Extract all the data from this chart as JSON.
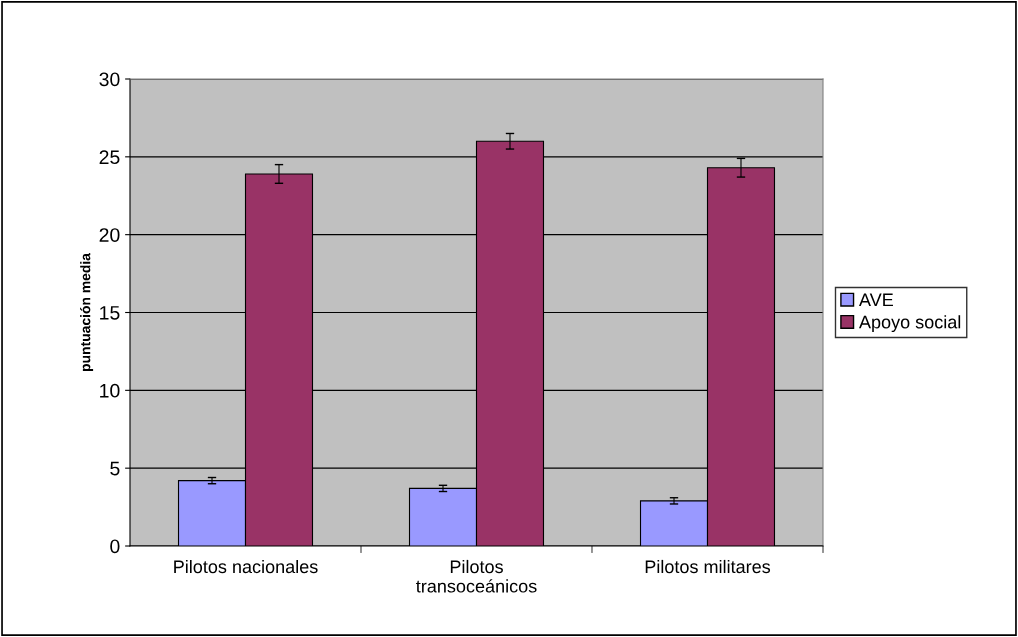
{
  "chart_data": {
    "type": "bar",
    "ylabel": "puntuación media",
    "categories": [
      "Pilotos nacionales",
      "Pilotos\ntransoceánicos",
      "Pilotos militares"
    ],
    "series": [
      {
        "name": "AVE",
        "color": "#9999ff",
        "values": [
          4.2,
          3.7,
          2.9
        ],
        "errors": [
          0.2,
          0.2,
          0.2
        ]
      },
      {
        "name": "Apoyo social",
        "color": "#993366",
        "values": [
          23.9,
          26.0,
          24.3
        ],
        "errors": [
          0.6,
          0.5,
          0.6
        ]
      }
    ],
    "ylim": [
      0,
      30
    ],
    "yticks": [
      0,
      5,
      10,
      15,
      20,
      25,
      30
    ],
    "grid": "y",
    "legend": "right"
  }
}
